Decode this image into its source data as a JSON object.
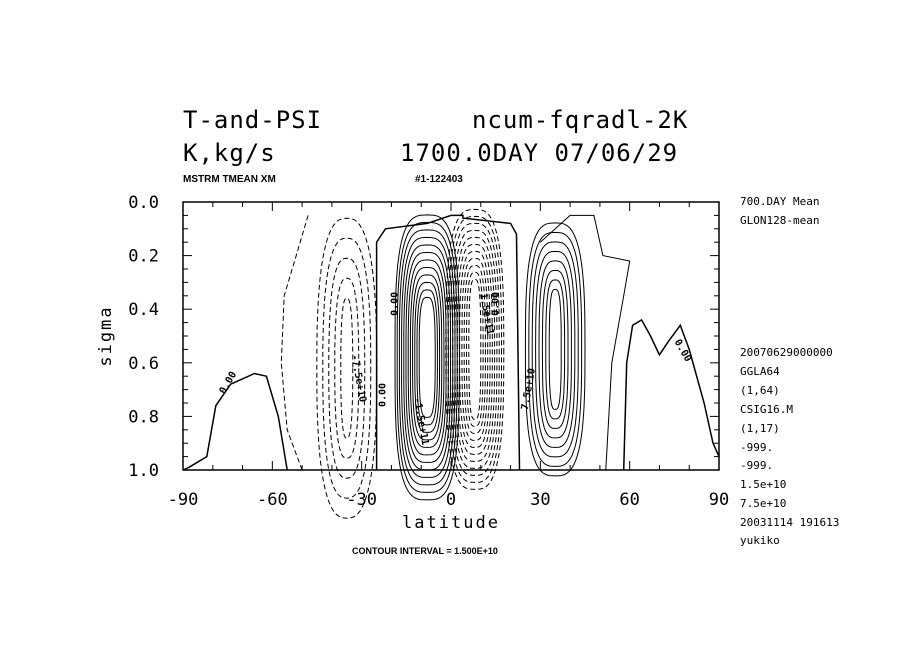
{
  "header": {
    "title_left_1": "T-and-PSI",
    "title_right_1": "ncum-fqradl-2K",
    "title_left_2": "K,kg/s",
    "title_right_2": "1700.0DAY 07/06/29",
    "sub_left": "MSTRM TMEAN XM",
    "sub_right": "#1-122403"
  },
  "side_info": {
    "top": [
      "700.DAY Mean",
      "GLON128-mean"
    ],
    "bottom": [
      "20070629000000",
      "GGLA64",
      "(1,64)",
      "CSIG16.M",
      "(1,17)",
      "-999.",
      "-999.",
      "1.5e+10",
      "7.5e+10",
      "20031114 191613",
      "yukiko"
    ]
  },
  "footer": {
    "contour_interval": "CONTOUR INTERVAL = 1.500E+10"
  },
  "chart_data": {
    "type": "contour",
    "xlabel": "latitude",
    "ylabel": "sigma",
    "xlim": [
      -90,
      90
    ],
    "ylim": [
      1.0,
      0.0
    ],
    "x_ticks": [
      "-90",
      "-60",
      "-30",
      "0",
      "30",
      "60",
      "90"
    ],
    "y_ticks": [
      "0.0",
      "0.2",
      "0.4",
      "0.6",
      "0.8",
      "1.0"
    ],
    "contour_interval": 15000000000.0,
    "contour_labels": [
      "0.00",
      "0.00",
      "0.00",
      "0.00",
      "0.00",
      "-7.5e+10",
      "7.5e+10",
      "-1.5e+11",
      "1.5e+11"
    ],
    "colors": {
      "lines": "#000000",
      "background": "#ffffff"
    }
  }
}
